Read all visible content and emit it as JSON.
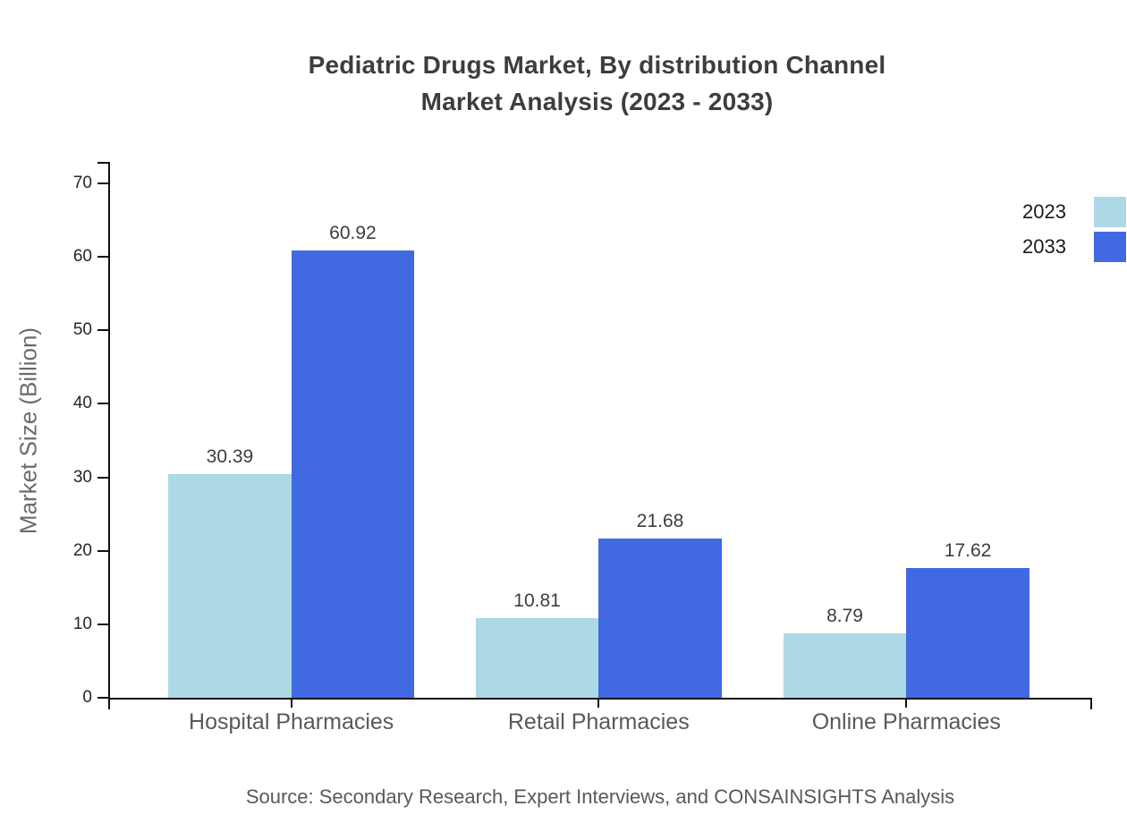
{
  "chart": {
    "title_line1": "Pediatric Drugs Market, By distribution Channel",
    "title_line2": "Market Analysis (2023 - 2033)",
    "y_axis_label": "Market Size (Billion)",
    "source_note": "Source: Secondary Research, Expert Interviews, and CONSAINSIGHTS Analysis"
  },
  "chart_data": {
    "type": "bar",
    "title": "Pediatric Drugs Market, By distribution Channel Market Analysis (2023 - 2033)",
    "categories": [
      "Hospital Pharmacies",
      "Retail Pharmacies",
      "Online Pharmacies"
    ],
    "series": [
      {
        "name": "2023",
        "color": "#ADD8E6",
        "values": [
          30.39,
          10.81,
          8.79
        ]
      },
      {
        "name": "2033",
        "color": "#4169E1",
        "values": [
          60.92,
          21.68,
          17.62
        ]
      }
    ],
    "xlabel": "",
    "ylabel": "Market Size (Billion)",
    "ylim": [
      0,
      70
    ],
    "y_ticks": [
      0,
      10,
      20,
      30,
      40,
      50,
      60,
      70
    ],
    "grid": false,
    "legend_position": "top-right",
    "value_labels": true,
    "source": "Source: Secondary Research, Expert Interviews, and CONSAINSIGHTS Analysis"
  }
}
